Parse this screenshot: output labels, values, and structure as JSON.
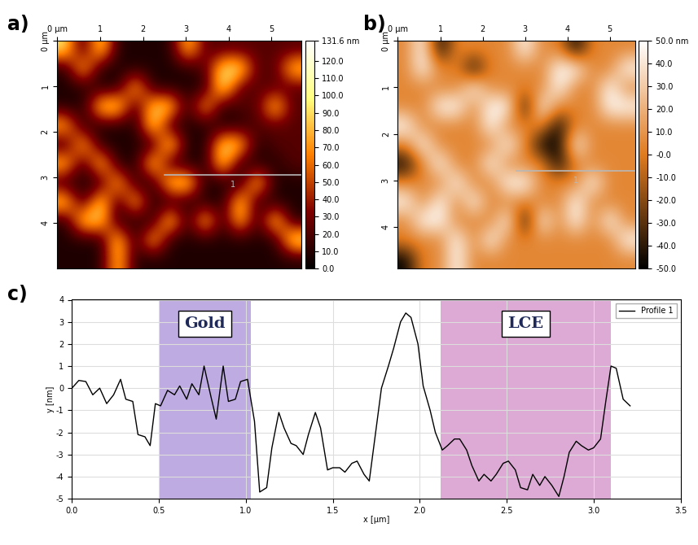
{
  "chart_data": [
    {
      "type": "heatmap",
      "title": "a)",
      "color": "afmhot",
      "xlim": [
        0,
        5.7
      ],
      "ylim": [
        5.0,
        0
      ],
      "xticks": [
        {
          "value": 0,
          "label": "0 µm"
        },
        1,
        2,
        3,
        4,
        5
      ],
      "yticks": [
        {
          "value": 0,
          "label": "0 µm"
        },
        1,
        2,
        3,
        4
      ],
      "colorbar": {
        "range": [
          0,
          131.6
        ],
        "ticks": [
          {
            "value": 0,
            "label": "0.0"
          },
          {
            "value": 10,
            "label": "10.0"
          },
          {
            "value": 20,
            "label": "20.0"
          },
          {
            "value": 30,
            "label": "30.0"
          },
          {
            "value": 40,
            "label": "40.0"
          },
          {
            "value": 50,
            "label": "50.0"
          },
          {
            "value": 60,
            "label": "60.0"
          },
          {
            "value": 70,
            "label": "70.0"
          },
          {
            "value": 80,
            "label": "80.0"
          },
          {
            "value": 90,
            "label": "90.0"
          },
          {
            "value": 100,
            "label": "100.0"
          },
          {
            "value": 110,
            "label": "110.0"
          },
          {
            "value": 120,
            "label": "120.0"
          },
          {
            "value": 131.6,
            "label": "131.6 nm"
          }
        ]
      },
      "profile_line": {
        "x": [
          2.5,
          5.7
        ],
        "y": [
          2.95,
          2.95
        ],
        "label": "1"
      },
      "cells": [
        [
          95,
          8,
          100,
          8,
          8,
          8,
          8,
          90,
          22,
          22,
          22,
          22,
          22,
          22
        ],
        [
          8,
          90,
          8,
          8,
          8,
          8,
          8,
          8,
          22,
          95,
          100,
          22,
          22,
          90
        ],
        [
          8,
          8,
          8,
          8,
          90,
          8,
          8,
          8,
          8,
          105,
          22,
          22,
          22,
          22
        ],
        [
          8,
          8,
          95,
          100,
          8,
          90,
          95,
          8,
          85,
          8,
          22,
          22,
          95,
          22
        ],
        [
          85,
          8,
          8,
          8,
          8,
          100,
          8,
          8,
          8,
          8,
          8,
          22,
          22,
          22
        ],
        [
          8,
          90,
          8,
          8,
          8,
          8,
          105,
          8,
          8,
          95,
          90,
          8,
          22,
          22
        ],
        [
          90,
          8,
          95,
          8,
          8,
          100,
          8,
          8,
          8,
          95,
          8,
          8,
          8,
          22
        ],
        [
          8,
          8,
          8,
          90,
          8,
          8,
          95,
          100,
          8,
          8,
          8,
          95,
          8,
          8
        ],
        [
          95,
          8,
          100,
          8,
          90,
          8,
          8,
          8,
          8,
          8,
          95,
          8,
          8,
          8
        ],
        [
          8,
          95,
          90,
          8,
          8,
          8,
          100,
          8,
          95,
          8,
          90,
          8,
          100,
          8
        ],
        [
          8,
          8,
          8,
          95,
          8,
          90,
          8,
          8,
          8,
          8,
          8,
          8,
          8,
          105
        ],
        [
          8,
          8,
          8,
          90,
          8,
          8,
          8,
          8,
          8,
          8,
          8,
          8,
          8,
          8
        ]
      ]
    },
    {
      "type": "heatmap",
      "title": "b)",
      "colors": [
        "#000000",
        "#e07a1f",
        "#ffffff"
      ],
      "xlim": [
        0,
        5.6
      ],
      "ylim": [
        4.9,
        0
      ],
      "xticks": [
        {
          "value": 0,
          "label": "0 µm"
        },
        1,
        2,
        3,
        4,
        5
      ],
      "yticks": [
        {
          "value": 0,
          "label": "0 µm"
        },
        1,
        2,
        3,
        4
      ],
      "colorbar": {
        "range": [
          -50,
          50
        ],
        "ticks": [
          {
            "value": 50,
            "label": "50.0 nm"
          },
          {
            "value": 40,
            "label": "40.0"
          },
          {
            "value": 30,
            "label": "30.0"
          },
          {
            "value": 20,
            "label": "20.0"
          },
          {
            "value": 10,
            "label": "10.0"
          },
          {
            "value": 0,
            "label": "-0.0"
          },
          {
            "value": -10,
            "label": "-10.0"
          },
          {
            "value": -20,
            "label": "-20.0"
          },
          {
            "value": -30,
            "label": "-30.0"
          },
          {
            "value": -40,
            "label": "-40.0"
          },
          {
            "value": -50,
            "label": "-50.0"
          }
        ]
      },
      "profile_line": {
        "x": [
          2.8,
          5.6
        ],
        "y": [
          2.8,
          2.8
        ],
        "label": "1"
      },
      "cells": [
        [
          5,
          50,
          -50,
          5,
          5,
          5,
          5,
          50,
          5,
          5,
          -50,
          5,
          5,
          5
        ],
        [
          5,
          50,
          5,
          5,
          -50,
          5,
          5,
          5,
          5,
          50,
          50,
          5,
          5,
          50
        ],
        [
          5,
          5,
          5,
          5,
          50,
          5,
          5,
          5,
          5,
          50,
          5,
          5,
          50,
          5
        ],
        [
          5,
          5,
          50,
          50,
          5,
          50,
          50,
          -50,
          50,
          5,
          5,
          5,
          50,
          50
        ],
        [
          50,
          5,
          5,
          5,
          5,
          50,
          5,
          5,
          5,
          -50,
          5,
          5,
          5,
          5
        ],
        [
          5,
          50,
          5,
          5,
          5,
          5,
          50,
          5,
          -50,
          -50,
          50,
          5,
          5,
          5
        ],
        [
          -50,
          5,
          50,
          5,
          5,
          50,
          5,
          5,
          5,
          -50,
          5,
          5,
          5,
          5
        ],
        [
          5,
          5,
          5,
          50,
          5,
          5,
          50,
          50,
          5,
          5,
          5,
          50,
          5,
          5
        ],
        [
          50,
          5,
          50,
          5,
          50,
          5,
          5,
          5,
          5,
          5,
          50,
          5,
          5,
          5
        ],
        [
          5,
          50,
          50,
          5,
          5,
          5,
          50,
          -50,
          50,
          5,
          50,
          5,
          50,
          5
        ],
        [
          5,
          5,
          5,
          50,
          5,
          50,
          5,
          5,
          5,
          5,
          5,
          5,
          5,
          50
        ],
        [
          -50,
          5,
          5,
          50,
          5,
          5,
          5,
          5,
          5,
          5,
          5,
          5,
          5,
          5
        ]
      ]
    },
    {
      "type": "line",
      "title": "c)",
      "x_label": "x [µm]",
      "y_label": "y [nm]",
      "xlim": [
        0,
        3.5
      ],
      "ylim": [
        -5,
        4
      ],
      "xticks": [
        {
          "value": 0,
          "label": "0.0"
        },
        0.5,
        {
          "value": 1,
          "label": "1.0"
        },
        1.5,
        {
          "value": 2,
          "label": "2.0"
        },
        2.5,
        {
          "value": 3,
          "label": "3.0"
        },
        3.5
      ],
      "yticks": [
        -5,
        -4,
        -3,
        -2,
        -1,
        0,
        1,
        2,
        3,
        4
      ],
      "grid": true,
      "legend": "upper right",
      "regions": [
        {
          "label": "Gold",
          "x": [
            0.5,
            1.03
          ],
          "color": "#a98fd8"
        },
        {
          "label": "LCE",
          "x": [
            2.12,
            3.1
          ],
          "color": "#d18ec8"
        }
      ],
      "x": [
        0.0,
        0.04,
        0.08,
        0.12,
        0.16,
        0.2,
        0.24,
        0.28,
        0.31,
        0.35,
        0.38,
        0.42,
        0.45,
        0.48,
        0.51,
        0.55,
        0.59,
        0.62,
        0.66,
        0.69,
        0.73,
        0.76,
        0.8,
        0.83,
        0.87,
        0.9,
        0.94,
        0.97,
        1.01,
        1.05,
        1.08,
        1.12,
        1.15,
        1.19,
        1.22,
        1.26,
        1.29,
        1.33,
        1.36,
        1.4,
        1.43,
        1.47,
        1.5,
        1.54,
        1.57,
        1.61,
        1.64,
        1.68,
        1.71,
        1.75,
        1.78,
        1.82,
        1.85,
        1.89,
        1.92,
        1.95,
        1.99,
        2.02,
        2.06,
        2.09,
        2.13,
        2.16,
        2.2,
        2.23,
        2.27,
        2.3,
        2.34,
        2.37,
        2.41,
        2.44,
        2.48,
        2.51,
        2.55,
        2.58,
        2.62,
        2.65,
        2.69,
        2.72,
        2.76,
        2.8,
        2.83,
        2.86,
        2.9,
        2.93,
        2.97,
        3.0,
        3.04,
        3.07,
        3.1,
        3.13,
        3.17,
        3.21
      ],
      "series": [
        {
          "name": "Profile 1",
          "color": "#000000",
          "values": [
            0.0,
            0.35,
            0.3,
            -0.3,
            0.0,
            -0.7,
            -0.3,
            0.4,
            -0.5,
            -0.6,
            -2.1,
            -2.2,
            -2.6,
            -0.7,
            -0.8,
            -0.1,
            -0.3,
            0.1,
            -0.5,
            0.2,
            -0.3,
            1.0,
            -0.4,
            -1.4,
            1.0,
            -0.6,
            -0.5,
            0.3,
            0.4,
            -1.5,
            -4.7,
            -4.5,
            -2.7,
            -1.1,
            -1.8,
            -2.5,
            -2.6,
            -3.0,
            -2.1,
            -1.1,
            -1.8,
            -3.7,
            -3.6,
            -3.6,
            -3.8,
            -3.4,
            -3.3,
            -3.9,
            -4.2,
            -1.8,
            0.0,
            1.0,
            1.8,
            3.0,
            3.4,
            3.2,
            2.0,
            0.1,
            -1.0,
            -2.0,
            -2.8,
            -2.6,
            -2.3,
            -2.3,
            -2.8,
            -3.5,
            -4.2,
            -3.9,
            -4.2,
            -3.9,
            -3.4,
            -3.3,
            -3.7,
            -4.5,
            -4.6,
            -3.9,
            -4.4,
            -4.0,
            -4.4,
            -4.9,
            -4.0,
            -2.9,
            -2.4,
            -2.6,
            -2.8,
            -2.7,
            -2.3,
            -0.6,
            1.0,
            0.9,
            -0.5,
            -0.8
          ]
        }
      ]
    }
  ]
}
